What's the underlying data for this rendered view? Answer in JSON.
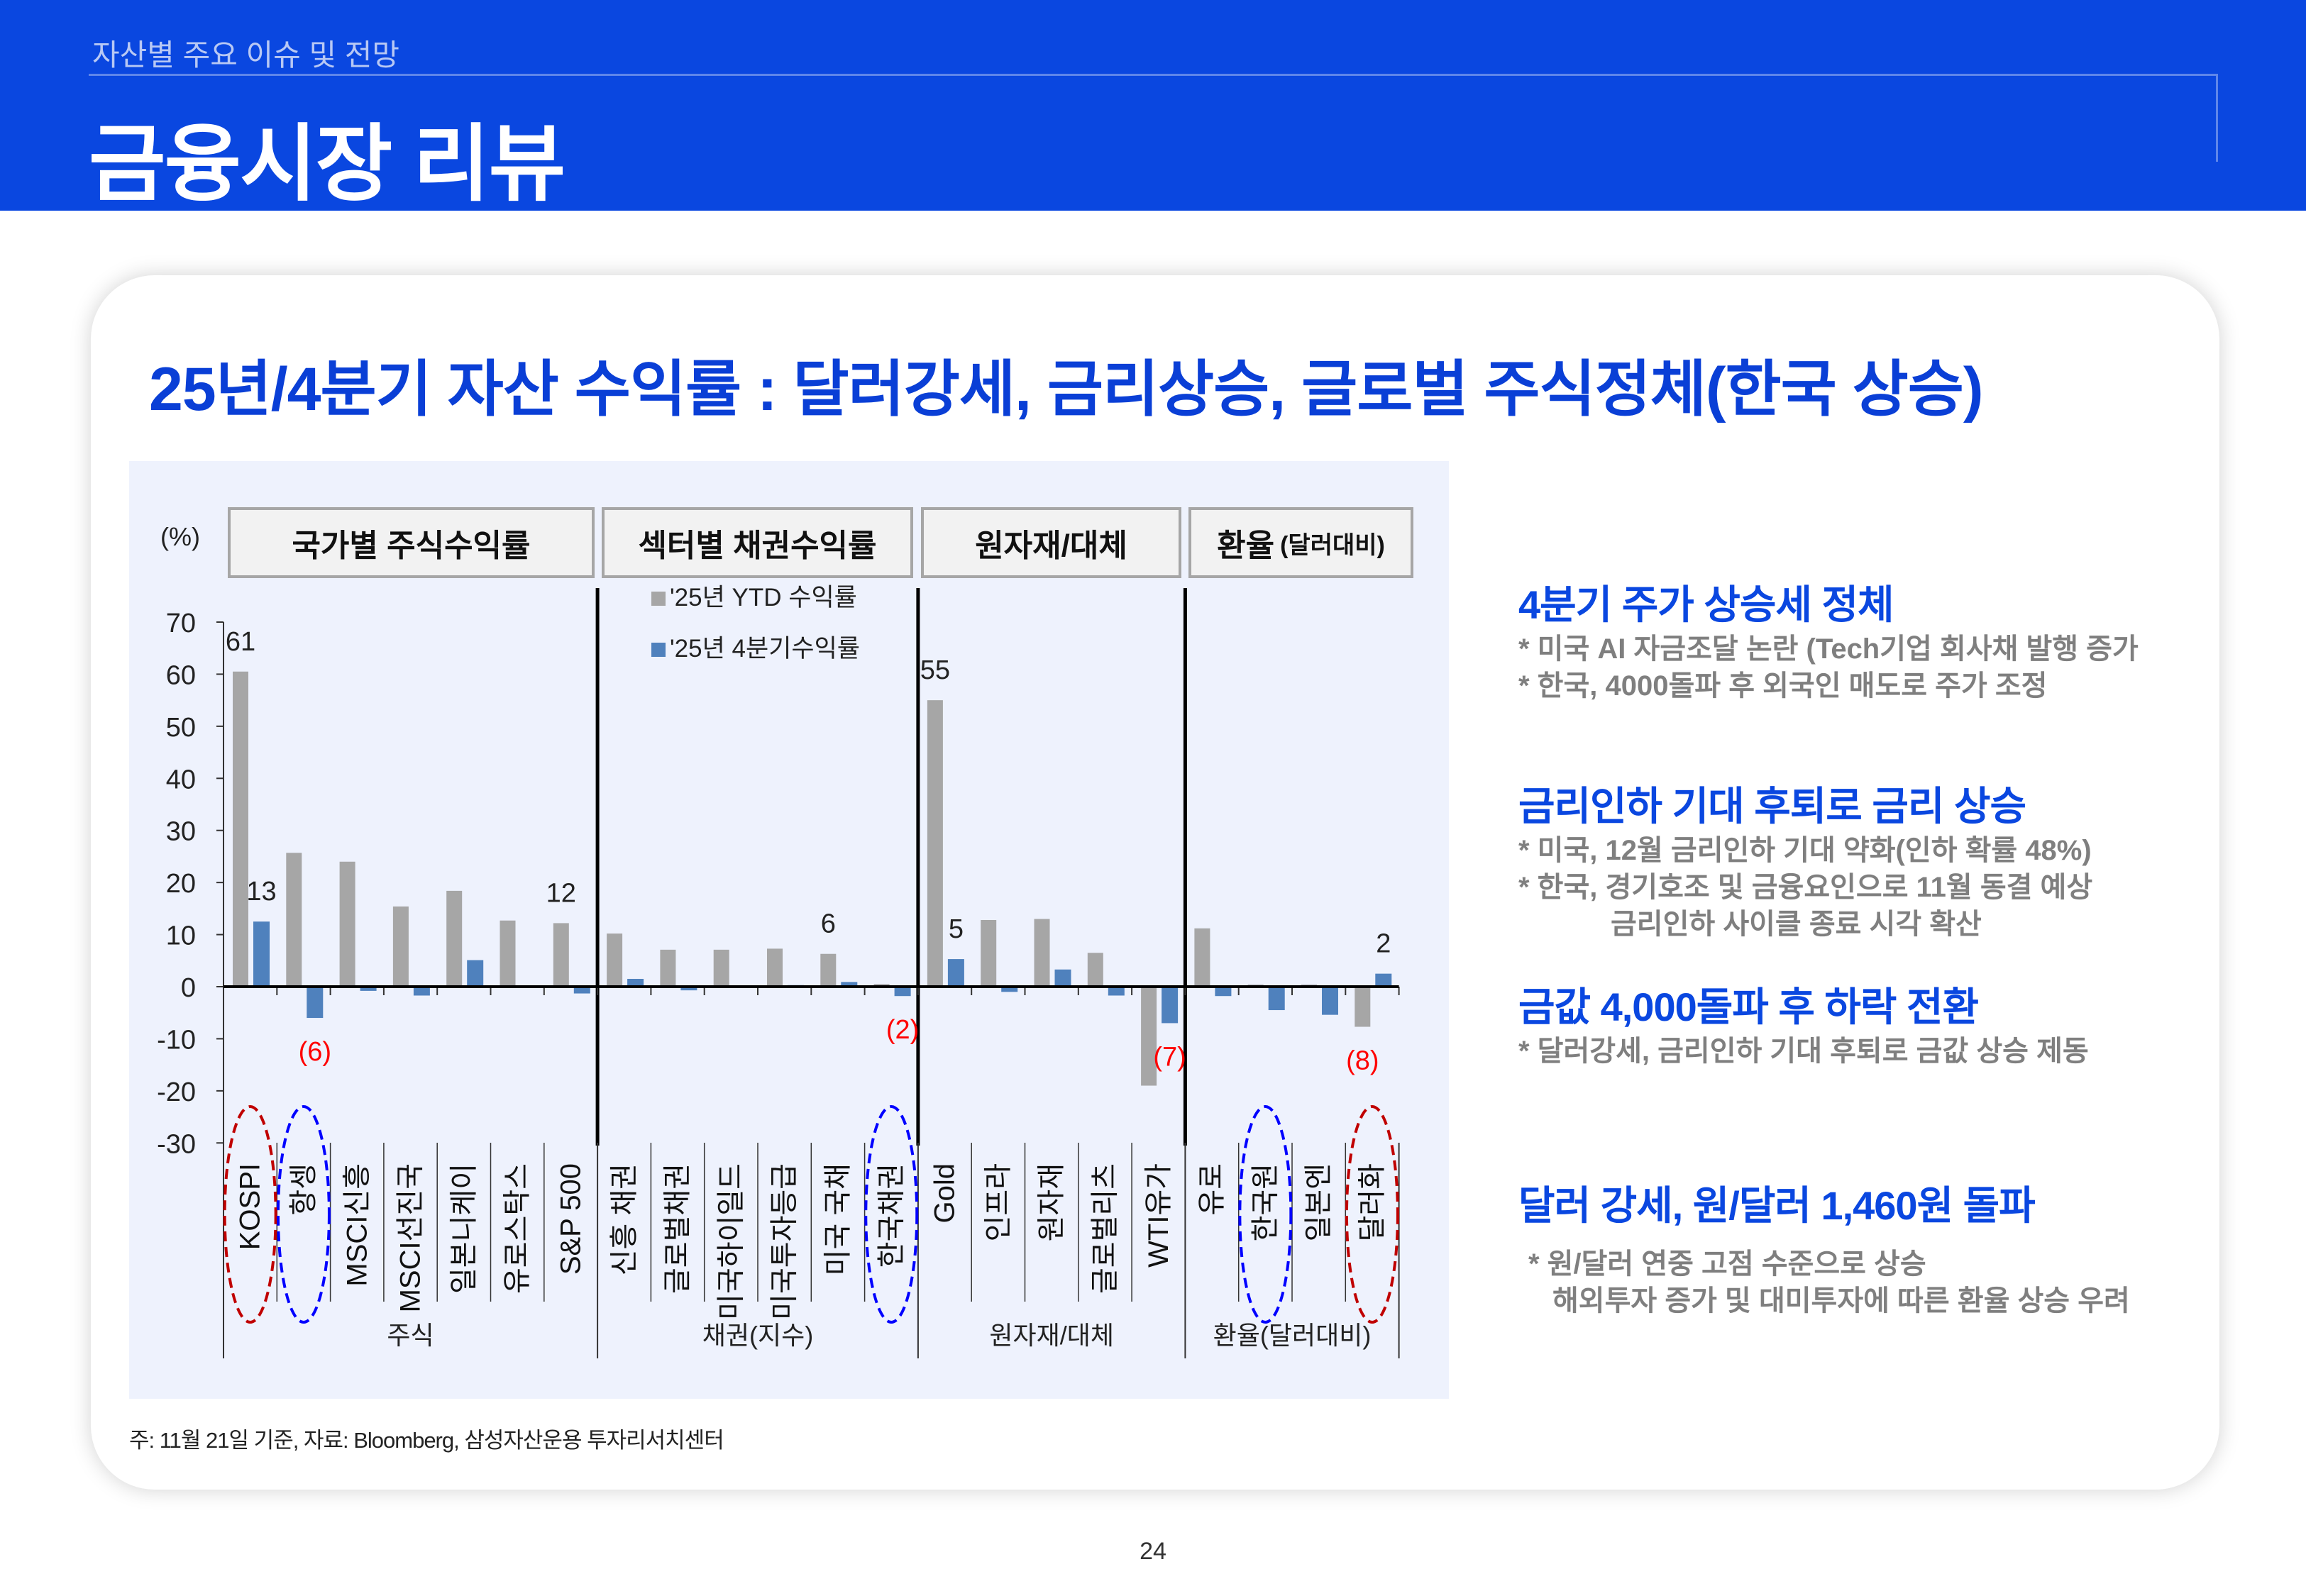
{
  "header": {
    "subtitle": "자산별 주요 이슈 및 전망",
    "title": "금융시장 리뷰"
  },
  "heading": "25년/4분기 자산 수익률 : 달러강세, 금리상승, 글로벌 주식정체(한국 상승)",
  "chart_data": {
    "type": "bar",
    "unit_label": "(%)",
    "ylim": [
      -30,
      70
    ],
    "yticks": [
      "70",
      "60",
      "50",
      "40",
      "30",
      "20",
      "10",
      "0",
      "-10",
      "-20",
      "-30"
    ],
    "ytick_values": [
      70,
      60,
      50,
      40,
      30,
      20,
      10,
      0,
      -10,
      -20,
      -30
    ],
    "legend_placement": "top",
    "groups": [
      {
        "title": "국가별 주식수익률",
        "title_note": "",
        "axis_label": "주식",
        "count": 7
      },
      {
        "title": "섹터별 채권수익률",
        "title_note": "",
        "axis_label": "채권(지수)",
        "count": 6
      },
      {
        "title": "원자재/대체",
        "title_note": "",
        "axis_label": "원자재/대체",
        "count": 5
      },
      {
        "title": "환율",
        "title_note": "(달러대비)",
        "axis_label": "환율(달러대비)",
        "count": 4
      }
    ],
    "categories": [
      "KOSPI",
      "항셍",
      "MSCI신흥",
      "MSCI선진국",
      "일본니케이",
      "유로스탁스",
      "S&P 500",
      "신흥 채권",
      "글로벌채권",
      "미국하이일드",
      "미국투자등급",
      "미국 국채",
      "한국채권",
      "Gold",
      "인프라",
      "원자재",
      "글로벌리츠",
      "WTI유가",
      "유로",
      "한국원",
      "일본엔",
      "달러화"
    ],
    "series": [
      {
        "name": "'25년 YTD 수익률",
        "color": "#a6a6a6",
        "values": [
          60.5,
          25.7,
          24.0,
          15.4,
          18.4,
          12.7,
          12.2,
          10.2,
          7.1,
          7.1,
          7.3,
          6.3,
          0.5,
          55.0,
          12.8,
          13.0,
          6.5,
          -19.0,
          11.2,
          0.4,
          0.4,
          -7.7
        ]
      },
      {
        "name": "'25년 4분기수익률",
        "color": "#4f81bd",
        "values": [
          12.5,
          -6.0,
          -0.8,
          -1.7,
          5.1,
          -0.1,
          -1.3,
          1.5,
          -0.7,
          0.0,
          0.3,
          0.9,
          -1.8,
          5.3,
          -1.0,
          3.3,
          -1.7,
          -7.0,
          -1.8,
          -4.5,
          -5.4,
          2.5
        ]
      }
    ],
    "data_labels": [
      {
        "series": 0,
        "index": 0,
        "text": "61",
        "color": "#222222"
      },
      {
        "series": 1,
        "index": 0,
        "text": "13",
        "color": "#222222"
      },
      {
        "series": 0,
        "index": 6,
        "text": "12",
        "color": "#222222"
      },
      {
        "series": 0,
        "index": 11,
        "text": "6",
        "color": "#222222"
      },
      {
        "series": 0,
        "index": 13,
        "text": "55",
        "color": "#222222"
      },
      {
        "series": 1,
        "index": 13,
        "text": "5",
        "color": "#222222"
      },
      {
        "series": 1,
        "index": 21,
        "text": "2",
        "color": "#222222"
      },
      {
        "series": 1,
        "index": 1,
        "text": "(6)",
        "color": "#ff0000"
      },
      {
        "series": 1,
        "index": 12,
        "text": "(2)",
        "color": "#ff0000"
      },
      {
        "series": 1,
        "index": 17,
        "text": "(7)",
        "color": "#ff0000"
      },
      {
        "series": 0,
        "index": 21,
        "text": "(8)",
        "color": "#ff0000"
      }
    ],
    "highlights": [
      {
        "index": 0,
        "color": "#c00000"
      },
      {
        "index": 1,
        "color": "#0000ff"
      },
      {
        "index": 12,
        "color": "#0000ff"
      },
      {
        "index": 19,
        "color": "#0000ff"
      },
      {
        "index": 21,
        "color": "#c00000"
      }
    ]
  },
  "note": "주: 11월 21일 기준, 자료: Bloomberg, 삼성자산운용 투자리서치센터",
  "side": [
    {
      "title": "4분기 주가 상승세 정체",
      "lines": [
        "* 미국 AI 자금조달 논란 (Tech기업 회사채 발행 증가",
        "* 한국, 4000돌파 후 외국인 매도로 주가 조정"
      ]
    },
    {
      "title": "금리인하 기대 후퇴로 금리 상승",
      "lines": [
        "* 미국, 12월 금리인하 기대 약화(인하 확률 48%)",
        "* 한국, 경기호조 및 금융요인으로 11월 동결 예상",
        "금리인하 사이클 종료 시각 확산"
      ]
    },
    {
      "title": "금값 4,000돌파 후 하락 전환",
      "lines": [
        "* 달러강세, 금리인하 기대 후퇴로 금값 상승 제동"
      ]
    },
    {
      "title": "달러 강세, 원/달러 1,460원 돌파",
      "lines": [
        "* 원/달러 연중 고점 수준으로 상승",
        "해외투자 증가 및 대미투자에 따른 환율 상승 우려"
      ]
    }
  ],
  "page_number": "24"
}
